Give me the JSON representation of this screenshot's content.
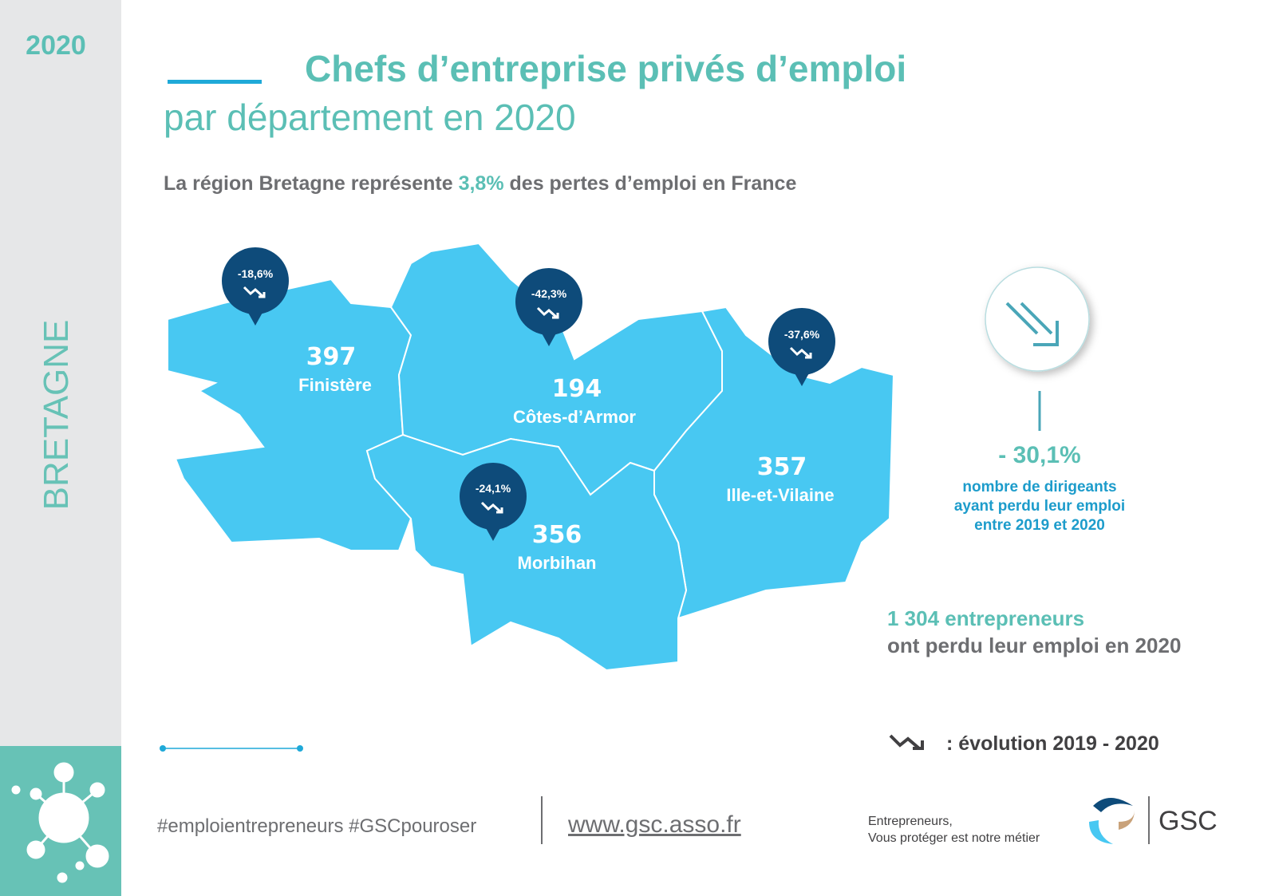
{
  "sidebar": {
    "year": "2020",
    "region": "BRETAGNE"
  },
  "header": {
    "title": "Chefs d’entreprise privés d’emploi",
    "subtitle": "par département en 2020"
  },
  "intro": {
    "before": "La région Bretagne représente",
    "highlight": "3,8%",
    "after": "des pertes d’emploi en France"
  },
  "departments": [
    {
      "name": "Finistère",
      "count": 397,
      "change": "-18,6%"
    },
    {
      "name": "Côtes-d’Armor",
      "count": 194,
      "change": "-42,3%"
    },
    {
      "name": "Ille-et-Vilaine",
      "count": 357,
      "change": "-37,6%"
    },
    {
      "name": "Morbihan",
      "count": 356,
      "change": "-24,1%"
    }
  ],
  "summary": {
    "change": "- 30,1%",
    "caption": [
      "nombre de dirigeants",
      "ayant perdu leur emploi",
      "entre 2019 et 2020"
    ]
  },
  "total": {
    "highlight": "1 304 entrepreneurs",
    "text": "ont perdu leur emploi en 2020"
  },
  "legend": ": évolution 2019 - 2020",
  "footer": {
    "hashtags": "#emploientrepreneurs #GSCpouroser",
    "url": "www.gsc.asso.fr",
    "tagline": [
      "Entrepreneurs,",
      "Vous protéger est notre métier"
    ],
    "logo": "GSC"
  }
}
